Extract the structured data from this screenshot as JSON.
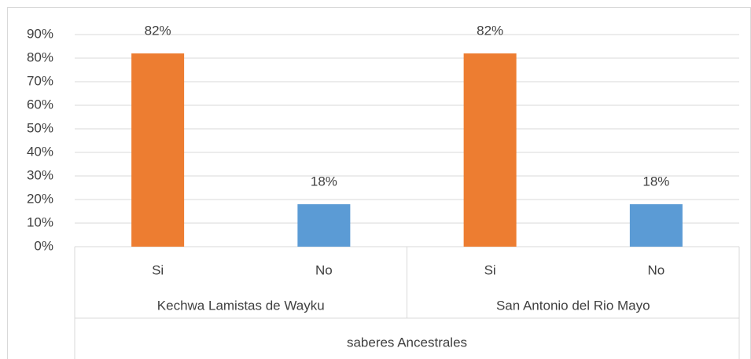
{
  "chart_data": {
    "type": "bar",
    "categories": [
      "Si",
      "No",
      "Si",
      "No"
    ],
    "groups": [
      "Kechwa Lamistas de Wayku",
      "San Antonio del Rio Mayo"
    ],
    "super_group": "saberes Ancestrales",
    "values": [
      82,
      18,
      82,
      18
    ],
    "value_labels": [
      "82%",
      "18%",
      "82%",
      "18%"
    ],
    "colors": [
      "#ED7D31",
      "#5B9BD5",
      "#ED7D31",
      "#5B9BD5"
    ],
    "ylim": [
      0,
      90
    ],
    "yticks": [
      {
        "value": 0,
        "label": "0%"
      },
      {
        "value": 10,
        "label": "10%"
      },
      {
        "value": 20,
        "label": "20%"
      },
      {
        "value": 30,
        "label": "30%"
      },
      {
        "value": 40,
        "label": "40%"
      },
      {
        "value": 50,
        "label": "50%"
      },
      {
        "value": 60,
        "label": "60%"
      },
      {
        "value": 70,
        "label": "70%"
      },
      {
        "value": 80,
        "label": "80%"
      },
      {
        "value": 90,
        "label": "90%"
      }
    ],
    "grid": true
  }
}
